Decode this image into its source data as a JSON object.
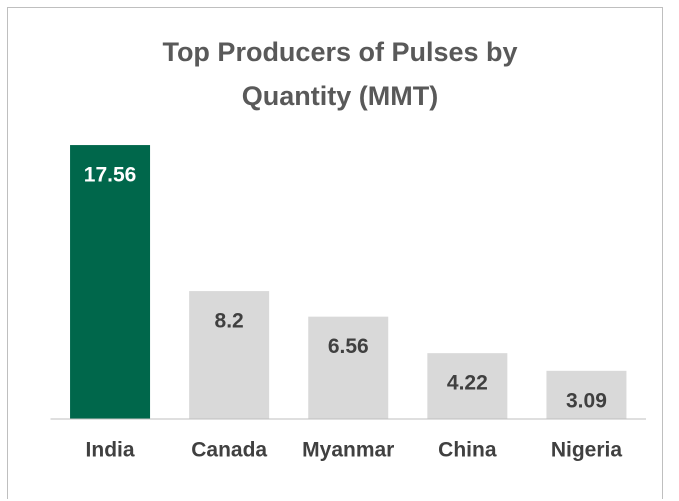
{
  "chart_data": {
    "type": "bar",
    "title": "Top Producers of Pulses by Quantity (MMT)",
    "categories": [
      "India",
      "Canada",
      "Myanmar",
      "China",
      "Nigeria"
    ],
    "values": [
      17.56,
      8.2,
      6.56,
      4.22,
      3.09
    ],
    "colors": [
      "#00674b",
      "#d9d9d9",
      "#d9d9d9",
      "#d9d9d9",
      "#d9d9d9"
    ],
    "ylim": [
      0,
      20
    ]
  }
}
